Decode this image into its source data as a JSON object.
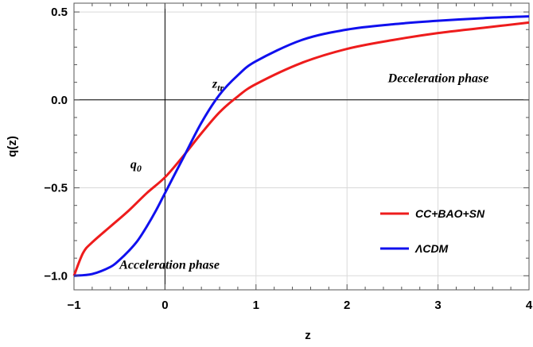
{
  "chart_data": {
    "type": "line",
    "xlabel": "z",
    "ylabel": "q(z)",
    "xlim": [
      -1,
      4
    ],
    "ylim": [
      -1.08,
      0.55
    ],
    "grid": true,
    "legend_position": "lower-right",
    "x_ticks": [
      -1,
      0,
      1,
      2,
      3,
      4
    ],
    "x_tick_labels": [
      "−1",
      "0",
      "1",
      "2",
      "3",
      "4"
    ],
    "y_ticks": [
      -1.0,
      -0.5,
      0.0,
      0.5
    ],
    "y_tick_labels": [
      "−1.0",
      "−0.5",
      "0.0",
      "0.5"
    ],
    "series": [
      {
        "name": "CC+BAO+SN",
        "color": "#ee1c1c",
        "x": [
          -1,
          -0.9,
          -0.8,
          -0.6,
          -0.4,
          -0.2,
          0,
          0.2,
          0.4,
          0.6,
          0.8,
          1.0,
          1.5,
          2.0,
          2.5,
          3.0,
          3.5,
          4.0
        ],
        "y": [
          -1.0,
          -0.87,
          -0.81,
          -0.72,
          -0.63,
          -0.53,
          -0.44,
          -0.32,
          -0.19,
          -0.07,
          0.02,
          0.09,
          0.21,
          0.29,
          0.34,
          0.38,
          0.41,
          0.44
        ]
      },
      {
        "name": "ΛCDM",
        "color": "#1010ee",
        "x": [
          -1,
          -0.8,
          -0.6,
          -0.5,
          -0.4,
          -0.3,
          -0.2,
          -0.1,
          0,
          0.2,
          0.4,
          0.6,
          0.8,
          1.0,
          1.5,
          2.0,
          2.5,
          3.0,
          3.5,
          4.0
        ],
        "y": [
          -1.0,
          -0.99,
          -0.95,
          -0.91,
          -0.86,
          -0.8,
          -0.72,
          -0.63,
          -0.53,
          -0.33,
          -0.13,
          0.03,
          0.14,
          0.22,
          0.34,
          0.4,
          0.43,
          0.45,
          0.465,
          0.475
        ]
      }
    ],
    "annotations": [
      {
        "id": "q0",
        "text": "q",
        "sub": "0",
        "x": -0.38,
        "y": -0.39
      },
      {
        "id": "ztr",
        "text": "z",
        "sub": "tr",
        "x": 0.52,
        "y": 0.07
      },
      {
        "id": "decel",
        "text": "Deceleration phase",
        "x": 2.45,
        "y": 0.1
      },
      {
        "id": "accel",
        "text": "Acceleration phase",
        "x": -0.5,
        "y": -0.96
      }
    ]
  }
}
